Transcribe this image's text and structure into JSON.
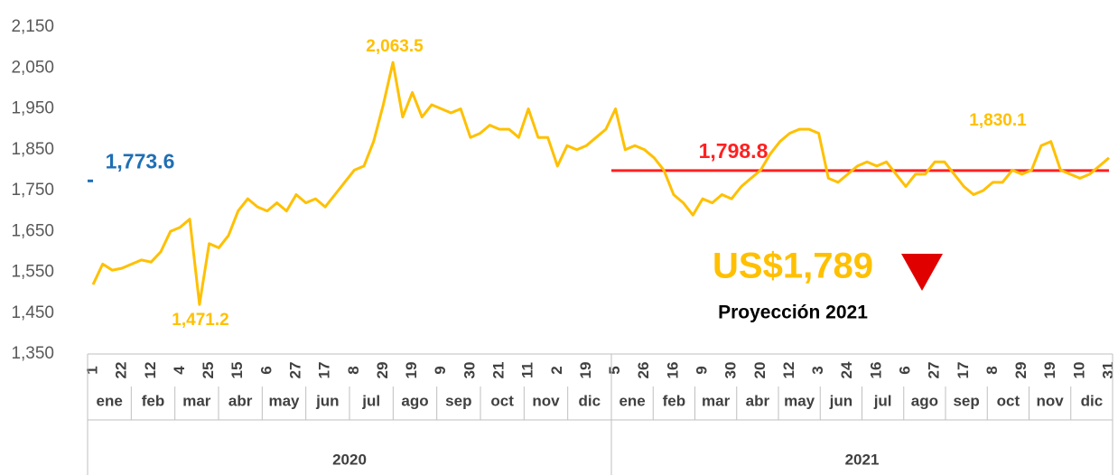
{
  "chart_data": {
    "type": "line",
    "categories": [
      "1",
      null,
      null,
      "22",
      null,
      null,
      "12",
      null,
      null,
      "4",
      null,
      null,
      "25",
      null,
      null,
      "15",
      null,
      null,
      "6",
      null,
      null,
      "27",
      null,
      null,
      "17",
      null,
      null,
      "8",
      null,
      null,
      "29",
      null,
      null,
      "19",
      null,
      null,
      "9",
      null,
      null,
      "30",
      null,
      null,
      "21",
      null,
      null,
      "11",
      null,
      null,
      "2",
      null,
      null,
      "19",
      null,
      null,
      "5",
      null,
      null,
      "26",
      null,
      null,
      "16",
      null,
      null,
      "9",
      null,
      null,
      "30",
      null,
      null,
      "20",
      null,
      null,
      "12",
      null,
      null,
      "3",
      null,
      null,
      "24",
      null,
      null,
      "16",
      null,
      null,
      "6",
      null,
      null,
      "27",
      null,
      null,
      "17",
      null,
      null,
      "8",
      null,
      null,
      "29",
      null,
      null,
      "19",
      null,
      null,
      "10",
      null,
      null,
      "31"
    ],
    "values": [
      1520,
      1570,
      1555,
      1560,
      1570,
      1580,
      1575,
      1600,
      1650,
      1660,
      1680,
      1471.2,
      1620,
      1610,
      1640,
      1700,
      1730,
      1710,
      1700,
      1720,
      1700,
      1740,
      1720,
      1730,
      1710,
      1740,
      1770,
      1800,
      1810,
      1870,
      1960,
      2063.5,
      1930,
      1990,
      1930,
      1960,
      1950,
      1940,
      1950,
      1880,
      1890,
      1910,
      1900,
      1900,
      1880,
      1950,
      1880,
      1880,
      1810,
      1860,
      1850,
      1860,
      1880,
      1900,
      1950,
      1850,
      1860,
      1850,
      1830,
      1800,
      1740,
      1720,
      1690,
      1730,
      1720,
      1740,
      1730,
      1760,
      1780,
      1800,
      1840,
      1870,
      1890,
      1900,
      1900,
      1890,
      1780,
      1770,
      1790,
      1810,
      1820,
      1810,
      1820,
      1790,
      1760,
      1790,
      1790,
      1820,
      1820,
      1790,
      1760,
      1740,
      1750,
      1770,
      1770,
      1800,
      1790,
      1800,
      1860,
      1870,
      1800,
      1790,
      1780,
      1790,
      1810,
      1830.1
    ],
    "color": "#ffc000",
    "ylim": [
      1350,
      2150
    ],
    "yticks": [
      {
        "value": 1350,
        "label": "1,350"
      },
      {
        "value": 1450,
        "label": "1,450"
      },
      {
        "value": 1550,
        "label": "1,550"
      },
      {
        "value": 1650,
        "label": "1,650"
      },
      {
        "value": 1750,
        "label": "1,750"
      },
      {
        "value": 1850,
        "label": "1,850"
      },
      {
        "value": 1950,
        "label": "1,950"
      },
      {
        "value": 2050,
        "label": "2,050"
      },
      {
        "value": 2150,
        "label": "2,150"
      }
    ],
    "years": [
      {
        "label": "2020",
        "months": [
          "ene",
          "feb",
          "mar",
          "abr",
          "may",
          "jun",
          "jul",
          "ago",
          "sep",
          "oct",
          "nov",
          "dic"
        ],
        "average": 1773.6,
        "average_label": "1,773.6",
        "average_color": "#1f6fb4"
      },
      {
        "label": "2021",
        "months": [
          "ene",
          "feb",
          "mar",
          "abr",
          "may",
          "jun",
          "jul",
          "ago",
          "sep",
          "oct",
          "nov",
          "dic"
        ],
        "average": 1798.8,
        "average_label": "1,798.8",
        "average_color": "#ff2020"
      }
    ],
    "annotations": [
      "2,063.5",
      "1,471.2",
      "1,830.1"
    ],
    "projection": {
      "label": "US$1,789",
      "subtitle": "Proyección 2021"
    }
  }
}
